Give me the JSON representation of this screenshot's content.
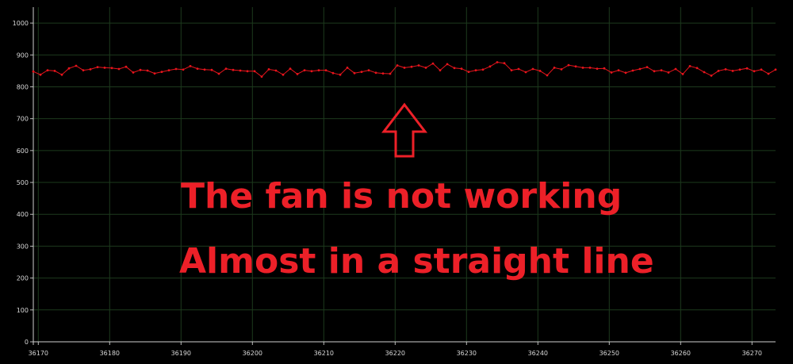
{
  "chart_data": {
    "type": "line",
    "title": "",
    "xlabel": "",
    "ylabel": "",
    "xlim": [
      36169.3,
      36273.3
    ],
    "ylim": [
      0,
      1050
    ],
    "grid": true,
    "x_ticks": [
      "36170",
      "36180",
      "36190",
      "36200",
      "36210",
      "36220",
      "36230",
      "36240",
      "36250",
      "36260",
      "36270"
    ],
    "y_ticks": [
      "0",
      "100",
      "200",
      "300",
      "400",
      "500",
      "600",
      "700",
      "800",
      "900",
      "1000"
    ],
    "x_start": 36169.3,
    "x_step": 1.0,
    "series": [
      {
        "name": "",
        "color": "#e8141c",
        "values": [
          848,
          838,
          852,
          850,
          838,
          858,
          866,
          852,
          855,
          862,
          860,
          859,
          856,
          863,
          845,
          853,
          851,
          842,
          847,
          852,
          856,
          854,
          865,
          857,
          854,
          853,
          841,
          857,
          853,
          851,
          849,
          849,
          832,
          855,
          851,
          838,
          857,
          840,
          852,
          849,
          852,
          852,
          843,
          838,
          860,
          843,
          847,
          852,
          844,
          842,
          841,
          867,
          860,
          863,
          867,
          860,
          873,
          852,
          871,
          859,
          857,
          847,
          852,
          854,
          864,
          877,
          874,
          852,
          856,
          846,
          856,
          850,
          836,
          860,
          855,
          868,
          864,
          860,
          860,
          857,
          858,
          845,
          852,
          844,
          851,
          856,
          862,
          849,
          852,
          845,
          856,
          840,
          865,
          859,
          846,
          835,
          850,
          855,
          850,
          854,
          858,
          849,
          854,
          841,
          854
        ]
      }
    ],
    "annotations": [
      {
        "text": "The fan is not working"
      },
      {
        "text": "Almost in a straight line"
      }
    ]
  }
}
